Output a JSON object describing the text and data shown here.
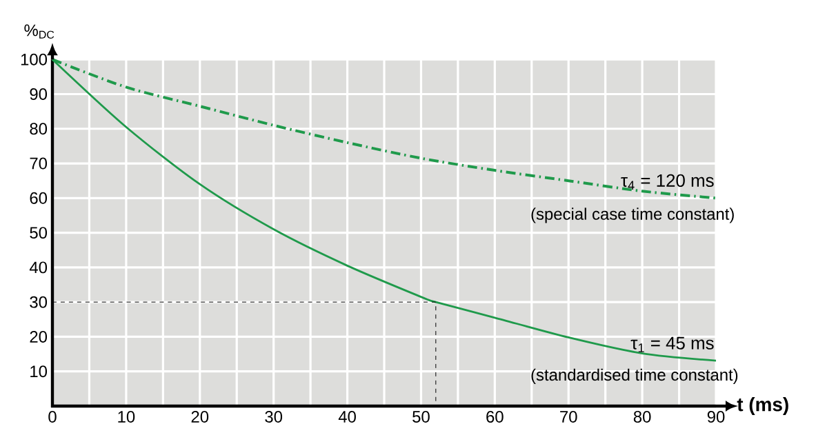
{
  "chart_data": {
    "type": "line",
    "xlabel": "t (ms)",
    "ylabel": "%$_{DC}$",
    "xlim": [
      0,
      90
    ],
    "ylim": [
      0,
      100
    ],
    "xticks": [
      0,
      10,
      20,
      30,
      40,
      50,
      60,
      70,
      80,
      90
    ],
    "yticks": [
      10,
      20,
      30,
      40,
      50,
      60,
      70,
      80,
      90,
      100
    ],
    "grid": true,
    "tick_labels": true,
    "series": [
      {
        "name": "τ$_{4}$ = 120 ms",
        "color": "#1f9a4b",
        "line_style": "dashdot",
        "x": [
          0,
          10,
          20,
          30,
          40,
          50,
          60,
          70,
          80,
          90
        ],
        "values": [
          100,
          92,
          86.5,
          81,
          76,
          71.5,
          68,
          65,
          62,
          60
        ]
      },
      {
        "name": "τ$_{1}$ = 45 ms",
        "color": "#1f9a4b",
        "line_style": "solid",
        "x": [
          0,
          10,
          20,
          30,
          40,
          50,
          52,
          60,
          70,
          80,
          90
        ],
        "values": [
          100,
          80.5,
          64,
          51,
          40.5,
          31.5,
          30,
          25.5,
          19.8,
          15.2,
          13.1
        ]
      },
      {
        "color": "#000000",
        "line_style": "dashed",
        "x": [
          0,
          52,
          52
        ],
        "values": [
          30,
          30,
          0
        ]
      }
    ],
    "annotations": [
      "(special case time constant)",
      "(standardised time constant)"
    ]
  }
}
